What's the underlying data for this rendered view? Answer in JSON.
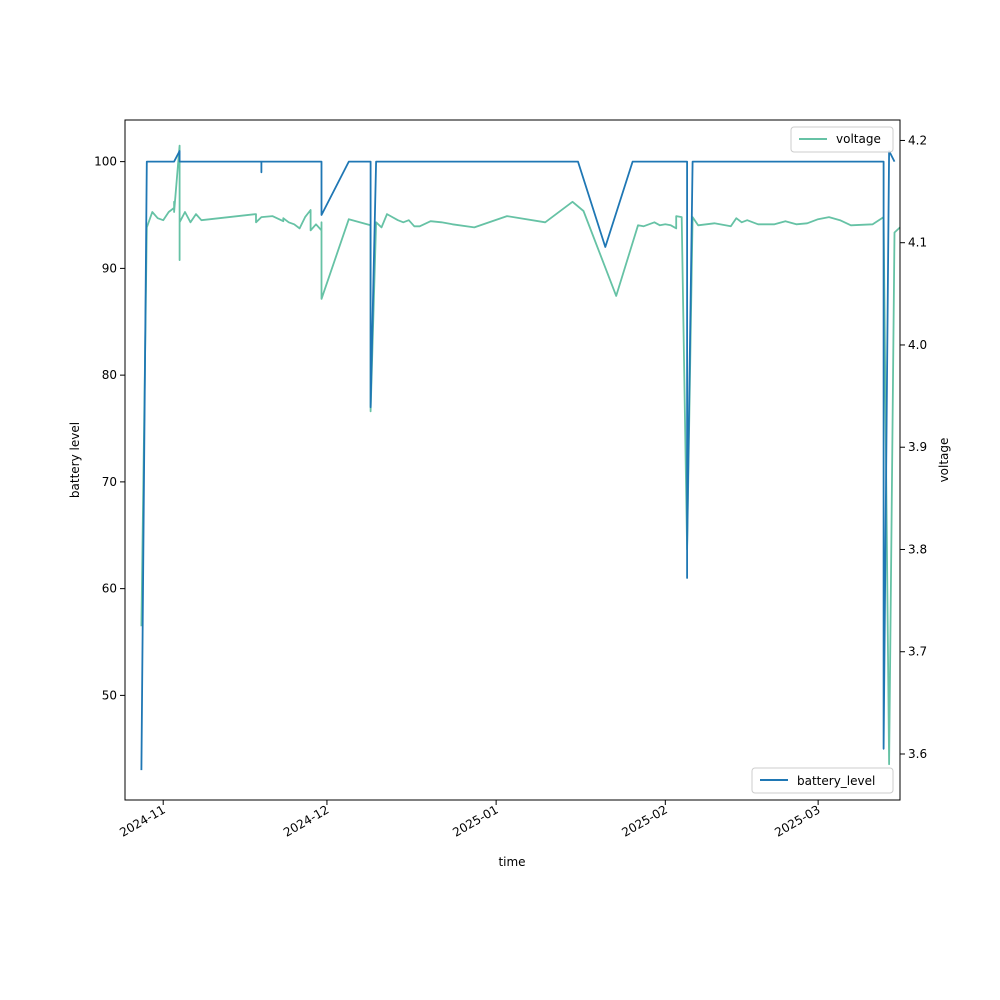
{
  "chart_data": {
    "type": "line",
    "title": "",
    "xlabel": "time",
    "ylabel_left": "battery level",
    "ylabel_right": "voltage",
    "x_axis": {
      "type": "date",
      "range": [
        "2024-10-25",
        "2025-03-16"
      ],
      "ticks": [
        {
          "date": "2024-11-01",
          "label": "2024-11"
        },
        {
          "date": "2024-12-01",
          "label": "2024-12"
        },
        {
          "date": "2025-01-01",
          "label": "2025-01"
        },
        {
          "date": "2025-02-01",
          "label": "2025-02"
        },
        {
          "date": "2025-03-01",
          "label": "2025-03"
        }
      ]
    },
    "y_left": {
      "range": [
        40.2,
        103.9
      ],
      "ticks": [
        50,
        60,
        70,
        80,
        90,
        100
      ]
    },
    "y_right": {
      "range": [
        3.555,
        4.22
      ],
      "ticks": [
        3.6,
        3.7,
        3.8,
        3.9,
        4.0,
        4.1,
        4.2
      ]
    },
    "grid": false,
    "series": [
      {
        "name": "battery_level",
        "axis": "left",
        "color": "#1f77b4",
        "legend_position": "lower-right",
        "points": [
          [
            "2024-10-28",
            43
          ],
          [
            "2024-10-29",
            100
          ],
          [
            "2024-11-03",
            100
          ],
          [
            "2024-11-04",
            101
          ],
          [
            "2024-11-04",
            100
          ],
          [
            "2024-11-19",
            100
          ],
          [
            "2024-11-19",
            99
          ],
          [
            "2024-11-19",
            100
          ],
          [
            "2024-11-30",
            100
          ],
          [
            "2024-11-30",
            95
          ],
          [
            "2024-12-05",
            100
          ],
          [
            "2024-12-09",
            100
          ],
          [
            "2024-12-09",
            77
          ],
          [
            "2024-12-10",
            100
          ],
          [
            "2025-01-16",
            100
          ],
          [
            "2025-01-21",
            92
          ],
          [
            "2025-01-26",
            100
          ],
          [
            "2025-01-30",
            100
          ],
          [
            "2025-01-31",
            100
          ],
          [
            "2025-02-01",
            100
          ],
          [
            "2025-02-05",
            100
          ],
          [
            "2025-02-05",
            61
          ],
          [
            "2025-02-05",
            64
          ],
          [
            "2025-02-06",
            100
          ],
          [
            "2025-03-13",
            100
          ],
          [
            "2025-03-13",
            45
          ],
          [
            "2025-03-14",
            101
          ],
          [
            "2025-03-15",
            100
          ]
        ]
      },
      {
        "name": "voltage",
        "axis": "right",
        "color": "#66c2a5",
        "legend_position": "upper-right",
        "points": [
          [
            "2024-10-28",
            3.725
          ],
          [
            "2024-10-29",
            4.115
          ],
          [
            "2024-10-30",
            4.13
          ],
          [
            "2024-10-31",
            4.124
          ],
          [
            "2024-11-01",
            4.122
          ],
          [
            "2024-11-02",
            4.13
          ],
          [
            "2024-11-03",
            4.134
          ],
          [
            "2024-11-03",
            4.14
          ],
          [
            "2024-11-03",
            4.13
          ],
          [
            "2024-11-04",
            4.195
          ],
          [
            "2024-11-04",
            4.083
          ],
          [
            "2024-11-04",
            4.12
          ],
          [
            "2024-11-05",
            4.13
          ],
          [
            "2024-11-06",
            4.12
          ],
          [
            "2024-11-07",
            4.128
          ],
          [
            "2024-11-08",
            4.122
          ],
          [
            "2024-11-18",
            4.128
          ],
          [
            "2024-11-18",
            4.12
          ],
          [
            "2024-11-19",
            4.125
          ],
          [
            "2024-11-21",
            4.126
          ],
          [
            "2024-11-23",
            4.121
          ],
          [
            "2024-11-23",
            4.124
          ],
          [
            "2024-11-24",
            4.12
          ],
          [
            "2024-11-25",
            4.118
          ],
          [
            "2024-11-26",
            4.114
          ],
          [
            "2024-11-27",
            4.125
          ],
          [
            "2024-11-28",
            4.132
          ],
          [
            "2024-11-28",
            4.112
          ],
          [
            "2024-11-29",
            4.118
          ],
          [
            "2024-11-30",
            4.112
          ],
          [
            "2024-11-30",
            4.12
          ],
          [
            "2024-11-30",
            4.045
          ],
          [
            "2024-12-05",
            4.123
          ],
          [
            "2024-12-09",
            4.117
          ],
          [
            "2024-12-09",
            3.935
          ],
          [
            "2024-12-10",
            4.12
          ],
          [
            "2024-12-11",
            4.115
          ],
          [
            "2024-12-12",
            4.128
          ],
          [
            "2024-12-13",
            4.125
          ],
          [
            "2024-12-14",
            4.122
          ],
          [
            "2024-12-15",
            4.12
          ],
          [
            "2024-12-16",
            4.122
          ],
          [
            "2024-12-17",
            4.116
          ],
          [
            "2024-12-18",
            4.116
          ],
          [
            "2024-12-20",
            4.121
          ],
          [
            "2024-12-22",
            4.12
          ],
          [
            "2024-12-24",
            4.118
          ],
          [
            "2024-12-28",
            4.115
          ],
          [
            "2025-01-03",
            4.126
          ],
          [
            "2025-01-10",
            4.12
          ],
          [
            "2025-01-15",
            4.14
          ],
          [
            "2025-01-17",
            4.131
          ],
          [
            "2025-01-23",
            4.048
          ],
          [
            "2025-01-27",
            4.117
          ],
          [
            "2025-01-28",
            4.116
          ],
          [
            "2025-01-30",
            4.12
          ],
          [
            "2025-01-31",
            4.117
          ],
          [
            "2025-02-01",
            4.118
          ],
          [
            "2025-02-02",
            4.117
          ],
          [
            "2025-02-03",
            4.114
          ],
          [
            "2025-02-03",
            4.126
          ],
          [
            "2025-02-04",
            4.125
          ],
          [
            "2025-02-05",
            3.8
          ],
          [
            "2025-02-06",
            4.125
          ],
          [
            "2025-02-07",
            4.117
          ],
          [
            "2025-02-10",
            4.119
          ],
          [
            "2025-02-12",
            4.117
          ],
          [
            "2025-02-13",
            4.116
          ],
          [
            "2025-02-14",
            4.124
          ],
          [
            "2025-02-15",
            4.12
          ],
          [
            "2025-02-16",
            4.122
          ],
          [
            "2025-02-18",
            4.118
          ],
          [
            "2025-02-21",
            4.118
          ],
          [
            "2025-02-23",
            4.121
          ],
          [
            "2025-02-25",
            4.118
          ],
          [
            "2025-02-27",
            4.119
          ],
          [
            "2025-03-01",
            4.123
          ],
          [
            "2025-03-03",
            4.125
          ],
          [
            "2025-03-05",
            4.122
          ],
          [
            "2025-03-07",
            4.117
          ],
          [
            "2025-03-11",
            4.118
          ],
          [
            "2025-03-13",
            4.125
          ],
          [
            "2025-03-14",
            3.59
          ],
          [
            "2025-03-15",
            4.11
          ],
          [
            "2025-03-16",
            4.115
          ]
        ]
      }
    ]
  }
}
